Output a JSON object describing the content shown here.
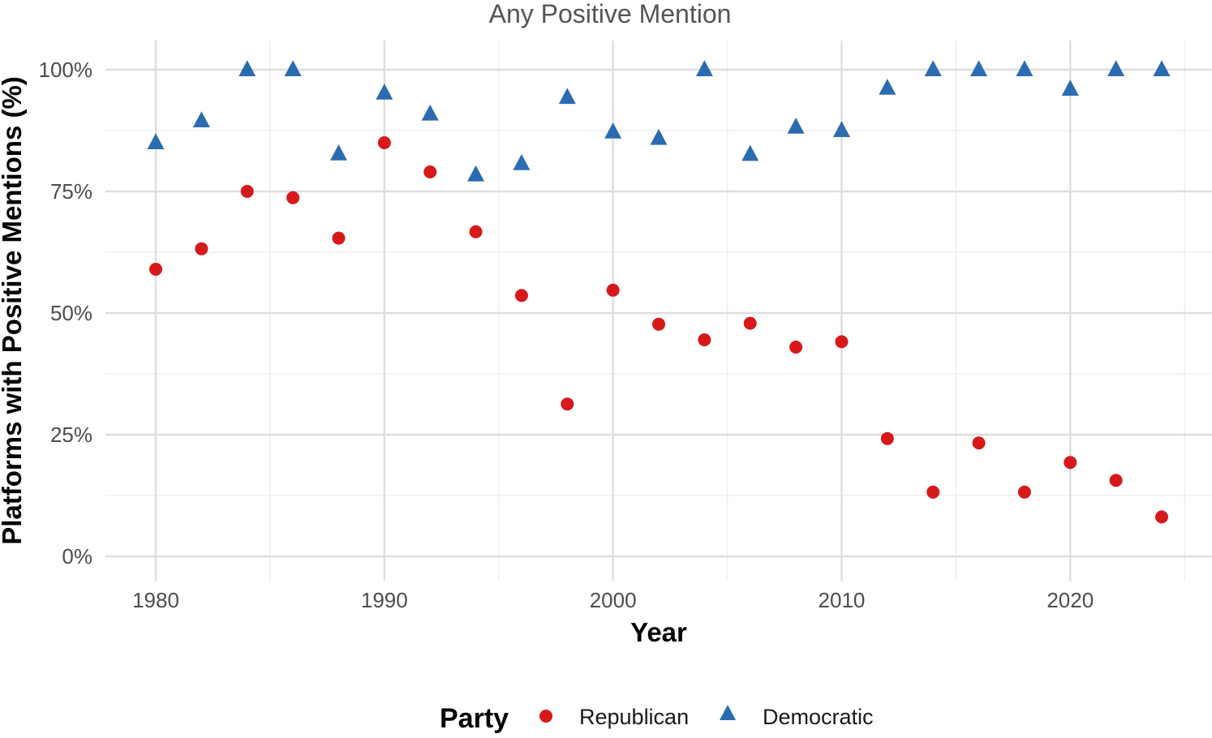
{
  "chart_data": {
    "type": "scatter",
    "title": "Any Positive Mention",
    "xlabel": "Year",
    "ylabel": "Platforms with Positive Mentions (%)",
    "xlim": [
      1977.8,
      2026.2
    ],
    "ylim": [
      -0.05,
      1.06
    ],
    "x_ticks": [
      1980,
      1990,
      2000,
      2010,
      2020
    ],
    "x_tick_labels": [
      "1980",
      "1990",
      "2000",
      "2010",
      "2020"
    ],
    "y_ticks": [
      0,
      0.25,
      0.5,
      0.75,
      1.0
    ],
    "y_tick_labels": [
      "0%",
      "25%",
      "50%",
      "75%",
      "100%"
    ],
    "grid": true,
    "legend_position": "bottom",
    "legend_title": "Party",
    "series": [
      {
        "name": "Republican",
        "shape": "circle",
        "color": "#d7191c",
        "x": [
          1980,
          1982,
          1984,
          1986,
          1988,
          1990,
          1992,
          1994,
          1996,
          1998,
          2000,
          2002,
          2004,
          2006,
          2008,
          2010,
          2012,
          2014,
          2016,
          2018,
          2020,
          2022,
          2024
        ],
        "y": [
          0.59,
          0.632,
          0.75,
          0.737,
          0.654,
          0.85,
          0.79,
          0.667,
          0.536,
          0.313,
          0.547,
          0.477,
          0.445,
          0.479,
          0.43,
          0.441,
          0.242,
          0.132,
          0.233,
          0.132,
          0.193,
          0.156,
          0.081
        ]
      },
      {
        "name": "Democratic",
        "shape": "triangle",
        "color": "#2b6cb0",
        "x": [
          1980,
          1982,
          1984,
          1986,
          1988,
          1990,
          1992,
          1994,
          1996,
          1998,
          2000,
          2002,
          2004,
          2006,
          2008,
          2010,
          2012,
          2014,
          2016,
          2018,
          2020,
          2022,
          2024
        ],
        "y": [
          0.85,
          0.895,
          1.0,
          1.0,
          0.827,
          0.952,
          0.909,
          0.784,
          0.807,
          0.943,
          0.872,
          0.859,
          1.0,
          0.826,
          0.882,
          0.875,
          0.962,
          1.0,
          1.0,
          1.0,
          0.96,
          1.0,
          1.0
        ]
      }
    ]
  }
}
